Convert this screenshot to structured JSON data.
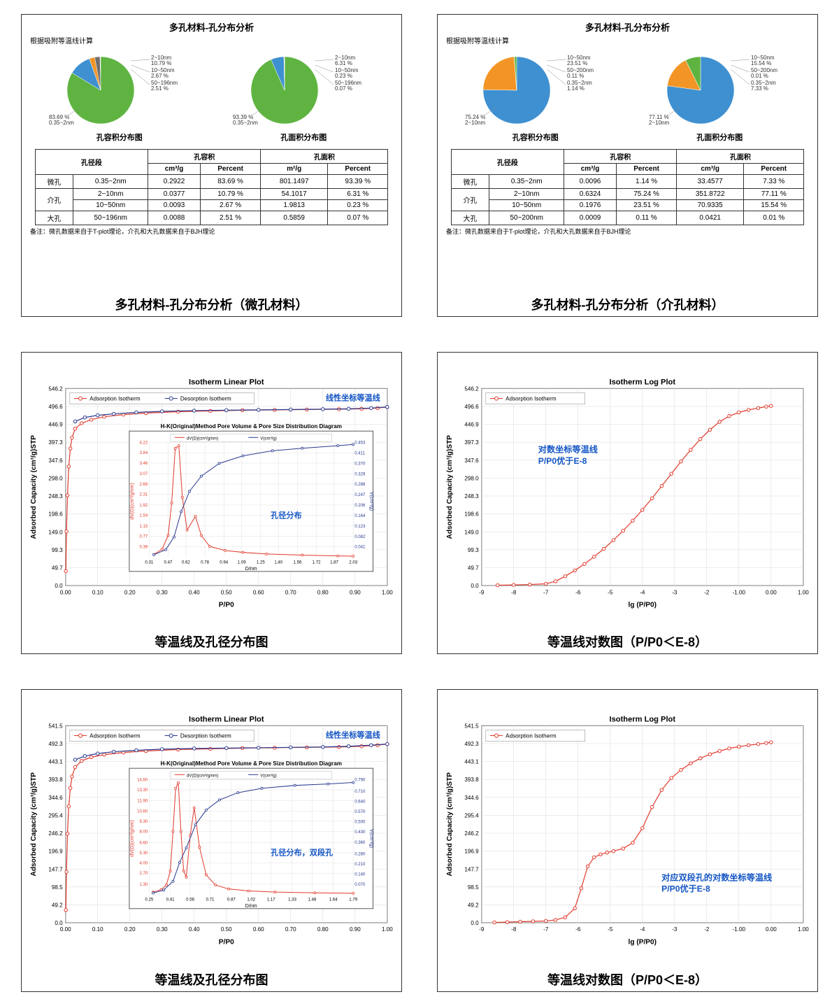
{
  "colors": {
    "green": "#5fb441",
    "blue": "#3e90d1",
    "orange": "#f29526",
    "grey": "#6f6f6f",
    "navy": "#2a3b8f",
    "red": "#e23b2e",
    "axis": "#333333",
    "grid": "#d9d9d9",
    "text_blue": "#1556c5"
  },
  "panel1": {
    "title": "多孔材料-孔分布分析",
    "sub": "根据吸附等温线计算",
    "pieA": {
      "label": "孔容积分布图",
      "slices": [
        {
          "label": "0.35~2nm",
          "label2": "83.69 %",
          "pct": 83.69,
          "color": "green"
        },
        {
          "label": "2~10nm",
          "label2": "10.79 %",
          "pct": 10.79,
          "color": "blue"
        },
        {
          "label": "10~50nm",
          "label2": "2.67 %",
          "pct": 2.67,
          "color": "orange"
        },
        {
          "label": "50~196nm",
          "label2": "2.51 %",
          "pct": 2.51,
          "color": "grey"
        }
      ]
    },
    "pieB": {
      "label": "孔面积分布图",
      "slices": [
        {
          "label": "0.35~2nm",
          "label2": "93.39 %",
          "pct": 93.39,
          "color": "green"
        },
        {
          "label": "2~10nm",
          "label2": "6.31 %",
          "pct": 6.31,
          "color": "blue"
        },
        {
          "label": "10~50nm",
          "label2": "0.23 %",
          "pct": 0.23,
          "color": "orange"
        },
        {
          "label": "50~196nm",
          "label2": "0.07 %",
          "pct": 0.07,
          "color": "grey"
        }
      ]
    },
    "table": {
      "head1": "孔径段",
      "head2": "孔容积",
      "head3": "孔面积",
      "sub1": "cm³/g",
      "sub2": "Percent",
      "sub3": "m²/g",
      "sub4": "Percent",
      "rows": [
        {
          "cat": "微孔",
          "range": "0.35~2nm",
          "v1": "0.2922",
          "v2": "83.69 %",
          "v3": "801.1497",
          "v4": "93.39 %",
          "rowspan": 1
        },
        {
          "cat": "介孔",
          "range": "2~10nm",
          "v1": "0.0377",
          "v2": "10.79 %",
          "v3": "54.1017",
          "v4": "6.31 %",
          "rowspan": 2
        },
        {
          "cat": "",
          "range": "10~50nm",
          "v1": "0.0093",
          "v2": "2.67 %",
          "v3": "1.9813",
          "v4": "0.23 %",
          "rowspan": 0
        },
        {
          "cat": "大孔",
          "range": "50~196nm",
          "v1": "0.0088",
          "v2": "2.51 %",
          "v3": "0.5859",
          "v4": "0.07 %",
          "rowspan": 1
        }
      ]
    },
    "footnote": "备注：微孔数据来自于T-plot理论，介孔和大孔数据来自于BJH理论",
    "caption": "多孔材料-孔分布分析（微孔材料）"
  },
  "panel2": {
    "title": "多孔材料-孔分布分析",
    "sub": "根据吸附等温线计算",
    "pieA": {
      "label": "孔容积分布图",
      "slices": [
        {
          "label": "2~10nm",
          "label2": "75.24 %",
          "pct": 75.24,
          "color": "blue"
        },
        {
          "label": "10~50nm",
          "label2": "23.51 %",
          "pct": 23.51,
          "color": "orange"
        },
        {
          "label": "50~200nm",
          "label2": "0.11 %",
          "pct": 0.11,
          "color": "grey"
        },
        {
          "label": "0.35~2nm",
          "label2": "1.14 %",
          "pct": 1.14,
          "color": "green"
        }
      ]
    },
    "pieB": {
      "label": "孔面积分布图",
      "slices": [
        {
          "label": "2~10nm",
          "label2": "77.11 %",
          "pct": 77.11,
          "color": "blue"
        },
        {
          "label": "10~50nm",
          "label2": "15.54 %",
          "pct": 15.54,
          "color": "orange"
        },
        {
          "label": "50~200nm",
          "label2": "0.01 %",
          "pct": 0.01,
          "color": "grey"
        },
        {
          "label": "0.35~2nm",
          "label2": "7.33 %",
          "pct": 7.33,
          "color": "green"
        }
      ]
    },
    "table": {
      "head1": "孔径段",
      "head2": "孔容积",
      "head3": "孔面积",
      "sub1": "cm³/g",
      "sub2": "Percent",
      "sub3": "cm³/g",
      "sub4": "Percent",
      "rows": [
        {
          "cat": "微孔",
          "range": "0.35~2nm",
          "v1": "0.0096",
          "v2": "1.14 %",
          "v3": "33.4577",
          "v4": "7.33 %",
          "rowspan": 1
        },
        {
          "cat": "介孔",
          "range": "2~10nm",
          "v1": "0.6324",
          "v2": "75.24 %",
          "v3": "351.8722",
          "v4": "77.11 %",
          "rowspan": 2
        },
        {
          "cat": "",
          "range": "10~50nm",
          "v1": "0.1976",
          "v2": "23.51 %",
          "v3": "70.9335",
          "v4": "15.54 %",
          "rowspan": 0
        },
        {
          "cat": "大孔",
          "range": "50~200nm",
          "v1": "0.0009",
          "v2": "0.11 %",
          "v3": "0.0421",
          "v4": "0.01 %",
          "rowspan": 1
        }
      ]
    },
    "footnote": "备注：微孔数据来自于T-plot理论，介孔和大孔数据来自于BJH理论",
    "caption": "多孔材料-孔分布分析（介孔材料）"
  },
  "panel3": {
    "title": "Isotherm Linear Plot",
    "legend": [
      "Adsorption Isotherm",
      "Desorption Isotherm"
    ],
    "note": "线性坐标等温线",
    "xlabel": "P/P0",
    "ylabel": "Adsorbed Capacity (cm³/g)STP",
    "ymin": 0,
    "ymax": 546.2,
    "yticks": [
      0,
      49.7,
      99.3,
      149.0,
      198.6,
      248.3,
      298.0,
      347.6,
      397.3,
      446.9,
      496.6,
      546.2
    ],
    "xticks": [
      0.0,
      0.1,
      0.2,
      0.3,
      0.4,
      0.5,
      0.6,
      0.7,
      0.8,
      0.9,
      1.0
    ],
    "ads": [
      [
        0.001,
        40
      ],
      [
        0.003,
        150
      ],
      [
        0.006,
        250
      ],
      [
        0.01,
        330
      ],
      [
        0.015,
        380
      ],
      [
        0.02,
        410
      ],
      [
        0.03,
        435
      ],
      [
        0.05,
        450
      ],
      [
        0.08,
        460
      ],
      [
        0.12,
        468
      ],
      [
        0.18,
        474
      ],
      [
        0.25,
        478
      ],
      [
        0.35,
        482
      ],
      [
        0.45,
        484
      ],
      [
        0.55,
        486
      ],
      [
        0.65,
        487
      ],
      [
        0.75,
        488
      ],
      [
        0.85,
        489
      ],
      [
        0.92,
        490
      ],
      [
        0.97,
        492
      ],
      [
        1.0,
        495
      ]
    ],
    "des": [
      [
        1.0,
        495
      ],
      [
        0.95,
        492
      ],
      [
        0.88,
        490
      ],
      [
        0.8,
        489
      ],
      [
        0.7,
        488
      ],
      [
        0.6,
        487
      ],
      [
        0.5,
        486
      ],
      [
        0.4,
        485
      ],
      [
        0.3,
        483
      ],
      [
        0.22,
        480
      ],
      [
        0.15,
        476
      ],
      [
        0.1,
        472
      ],
      [
        0.06,
        466
      ],
      [
        0.03,
        455
      ]
    ],
    "inset": {
      "title": "H-K(Original)Method Pore Volume & Pore Size Distribution Diagram",
      "note": "孔径分布",
      "legend": [
        "dV(D)(cm³/g/nm)",
        "V(cm³/g)"
      ],
      "xlabel": "D/nm",
      "xticks": [
        0.31,
        0.47,
        0.62,
        0.78,
        0.94,
        1.09,
        1.25,
        1.4,
        1.56,
        1.72,
        1.87,
        2.03
      ],
      "yl_ticks": [
        0.39,
        0.77,
        1.15,
        1.54,
        1.92,
        2.31,
        2.69,
        3.07,
        3.46,
        3.84,
        4.22
      ],
      "yr_ticks": [
        0.041,
        0.082,
        0.123,
        0.164,
        0.206,
        0.247,
        0.288,
        0.329,
        0.37,
        0.411,
        0.453
      ],
      "yl_label": "dV(D)(cm³/g/nm)",
      "yr_label": "V(cm³/g)",
      "red": [
        [
          0.35,
          0.1
        ],
        [
          0.42,
          0.3
        ],
        [
          0.47,
          0.8
        ],
        [
          0.5,
          2.0
        ],
        [
          0.53,
          4.0
        ],
        [
          0.56,
          4.1
        ],
        [
          0.59,
          2.2
        ],
        [
          0.63,
          1.0
        ],
        [
          0.7,
          1.5
        ],
        [
          0.75,
          0.8
        ],
        [
          0.82,
          0.4
        ],
        [
          0.95,
          0.25
        ],
        [
          1.1,
          0.18
        ],
        [
          1.3,
          0.12
        ],
        [
          1.6,
          0.08
        ],
        [
          1.9,
          0.05
        ],
        [
          2.03,
          0.04
        ]
      ],
      "blue": [
        [
          0.35,
          0.01
        ],
        [
          0.45,
          0.03
        ],
        [
          0.52,
          0.08
        ],
        [
          0.58,
          0.18
        ],
        [
          0.65,
          0.26
        ],
        [
          0.75,
          0.32
        ],
        [
          0.9,
          0.37
        ],
        [
          1.1,
          0.4
        ],
        [
          1.35,
          0.42
        ],
        [
          1.6,
          0.43
        ],
        [
          1.9,
          0.44
        ],
        [
          2.03,
          0.445
        ]
      ]
    },
    "caption": "等温线及孔径分布图"
  },
  "panel4": {
    "title": "Isotherm Log Plot",
    "legend": [
      "Adsorption Isotherm"
    ],
    "note1": "对数坐标等温线",
    "note2": "P/P0优于E-8",
    "xlabel": "lg (P/P0)",
    "ylabel": "Adsorbed Capacity (cm³/g)STP",
    "ymin": 0,
    "ymax": 546.2,
    "yticks": [
      0,
      49.7,
      99.3,
      149.0,
      198.6,
      248.3,
      298.0,
      347.6,
      397.3,
      446.9,
      496.6,
      546.2
    ],
    "xticks": [
      -9,
      -8,
      -7,
      -6,
      -5,
      -4,
      -3,
      -2,
      -1,
      0,
      1
    ],
    "pts": [
      [
        -8.5,
        1
      ],
      [
        -8.0,
        2
      ],
      [
        -7.5,
        3
      ],
      [
        -7.0,
        5
      ],
      [
        -6.7,
        12
      ],
      [
        -6.4,
        26
      ],
      [
        -6.1,
        42
      ],
      [
        -5.8,
        60
      ],
      [
        -5.5,
        80
      ],
      [
        -5.2,
        102
      ],
      [
        -4.9,
        126
      ],
      [
        -4.6,
        152
      ],
      [
        -4.3,
        180
      ],
      [
        -4.0,
        210
      ],
      [
        -3.7,
        242
      ],
      [
        -3.4,
        276
      ],
      [
        -3.1,
        310
      ],
      [
        -2.8,
        344
      ],
      [
        -2.5,
        376
      ],
      [
        -2.2,
        406
      ],
      [
        -1.9,
        432
      ],
      [
        -1.6,
        454
      ],
      [
        -1.3,
        470
      ],
      [
        -1.0,
        480
      ],
      [
        -0.7,
        487
      ],
      [
        -0.4,
        492
      ],
      [
        -0.15,
        496
      ],
      [
        0.0,
        498
      ]
    ],
    "caption": "等温线对数图（P/P0＜E-8）"
  },
  "panel5": {
    "title": "Isotherm Linear Plot",
    "legend": [
      "Adsorption Isotherm",
      "Desorption Isotherm"
    ],
    "note": "线性坐标等温线",
    "xlabel": "P/P0",
    "ylabel": "Adsorbed Capacity (cm³/g)STP",
    "ymin": 0,
    "ymax": 541.5,
    "yticks": [
      0,
      49.2,
      98.5,
      147.7,
      196.9,
      246.2,
      295.4,
      344.6,
      393.8,
      443.1,
      492.3,
      541.5
    ],
    "xticks": [
      0.0,
      0.1,
      0.2,
      0.3,
      0.4,
      0.5,
      0.6,
      0.7,
      0.8,
      0.9,
      1.0
    ],
    "ads": [
      [
        0.001,
        35
      ],
      [
        0.003,
        140
      ],
      [
        0.006,
        245
      ],
      [
        0.01,
        320
      ],
      [
        0.015,
        370
      ],
      [
        0.02,
        402
      ],
      [
        0.03,
        428
      ],
      [
        0.05,
        445
      ],
      [
        0.08,
        455
      ],
      [
        0.12,
        462
      ],
      [
        0.18,
        468
      ],
      [
        0.25,
        472
      ],
      [
        0.35,
        476
      ],
      [
        0.45,
        478
      ],
      [
        0.55,
        480
      ],
      [
        0.65,
        481
      ],
      [
        0.75,
        482
      ],
      [
        0.85,
        483
      ],
      [
        0.92,
        485
      ],
      [
        0.97,
        488
      ],
      [
        1.0,
        491
      ]
    ],
    "des": [
      [
        1.0,
        491
      ],
      [
        0.95,
        488
      ],
      [
        0.88,
        485
      ],
      [
        0.8,
        483
      ],
      [
        0.7,
        482
      ],
      [
        0.6,
        481
      ],
      [
        0.5,
        480
      ],
      [
        0.4,
        479
      ],
      [
        0.3,
        477
      ],
      [
        0.22,
        474
      ],
      [
        0.15,
        470
      ],
      [
        0.1,
        465
      ],
      [
        0.06,
        458
      ],
      [
        0.03,
        448
      ]
    ],
    "inset": {
      "title": "H-K(Original)Method Pore Volume & Pore Size Distribution Diagram",
      "note": "孔径分布，双段孔",
      "legend": [
        "dV(D)(cm³/g/nm)",
        "V(cm³/g)"
      ],
      "xlabel": "D/nm",
      "xticks": [
        0.25,
        0.41,
        0.56,
        0.71,
        0.87,
        1.02,
        1.17,
        1.33,
        1.48,
        1.64,
        1.79
      ],
      "yl_ticks": [
        1.3,
        2.7,
        4.0,
        5.3,
        6.6,
        8.0,
        9.3,
        10.6,
        11.9,
        13.3,
        14.6
      ],
      "yr_ticks": [
        0.07,
        0.14,
        0.21,
        0.28,
        0.36,
        0.43,
        0.5,
        0.57,
        0.64,
        0.71,
        0.79
      ],
      "yl_label": "dV(D)(cm³/g/nm)",
      "yr_label": "V(cm³/g)",
      "red": [
        [
          0.28,
          0.3
        ],
        [
          0.34,
          0.6
        ],
        [
          0.38,
          1.2
        ],
        [
          0.41,
          3.0
        ],
        [
          0.43,
          8.0
        ],
        [
          0.45,
          13.5
        ],
        [
          0.47,
          14.2
        ],
        [
          0.49,
          8.0
        ],
        [
          0.51,
          3.0
        ],
        [
          0.53,
          2.2
        ],
        [
          0.56,
          7.5
        ],
        [
          0.59,
          11.0
        ],
        [
          0.63,
          6.0
        ],
        [
          0.68,
          2.5
        ],
        [
          0.75,
          1.2
        ],
        [
          0.85,
          0.7
        ],
        [
          1.0,
          0.45
        ],
        [
          1.2,
          0.3
        ],
        [
          1.5,
          0.2
        ],
        [
          1.79,
          0.15
        ]
      ],
      "blue": [
        [
          0.28,
          0.01
        ],
        [
          0.36,
          0.03
        ],
        [
          0.43,
          0.09
        ],
        [
          0.48,
          0.22
        ],
        [
          0.53,
          0.32
        ],
        [
          0.6,
          0.48
        ],
        [
          0.68,
          0.58
        ],
        [
          0.78,
          0.65
        ],
        [
          0.92,
          0.7
        ],
        [
          1.1,
          0.73
        ],
        [
          1.35,
          0.75
        ],
        [
          1.6,
          0.76
        ],
        [
          1.79,
          0.77
        ]
      ]
    },
    "caption": "等温线及孔径分布图"
  },
  "panel6": {
    "title": "Isotherm Log Plot",
    "legend": [
      "Adsorption Isotherm"
    ],
    "note1": "对应双段孔的对数坐标等温线",
    "note2": "P/P0优于E-8",
    "xlabel": "lg (P/P0)",
    "ylabel": "Adsorbed Capacity (cm³/g)STP",
    "ymin": 0,
    "ymax": 541.5,
    "yticks": [
      0,
      49.2,
      98.5,
      147.7,
      196.9,
      246.2,
      295.4,
      344.6,
      393.8,
      443.1,
      492.3,
      541.5
    ],
    "xticks": [
      -9,
      -8,
      -7,
      -6,
      -5,
      -4,
      -3,
      -2,
      -1,
      0,
      1
    ],
    "pts": [
      [
        -8.6,
        1
      ],
      [
        -8.2,
        2
      ],
      [
        -7.8,
        3
      ],
      [
        -7.4,
        4
      ],
      [
        -7.0,
        5
      ],
      [
        -6.7,
        8
      ],
      [
        -6.4,
        15
      ],
      [
        -6.1,
        40
      ],
      [
        -5.9,
        95
      ],
      [
        -5.7,
        155
      ],
      [
        -5.5,
        180
      ],
      [
        -5.3,
        188
      ],
      [
        -5.1,
        193
      ],
      [
        -4.9,
        197
      ],
      [
        -4.6,
        204
      ],
      [
        -4.3,
        220
      ],
      [
        -4.0,
        260
      ],
      [
        -3.7,
        318
      ],
      [
        -3.4,
        365
      ],
      [
        -3.1,
        398
      ],
      [
        -2.8,
        420
      ],
      [
        -2.5,
        438
      ],
      [
        -2.2,
        452
      ],
      [
        -1.9,
        463
      ],
      [
        -1.6,
        472
      ],
      [
        -1.3,
        479
      ],
      [
        -1.0,
        484
      ],
      [
        -0.7,
        488
      ],
      [
        -0.4,
        491
      ],
      [
        -0.15,
        494
      ],
      [
        0.0,
        496
      ]
    ],
    "caption": "等温线对数图（P/P0＜E-8）"
  }
}
